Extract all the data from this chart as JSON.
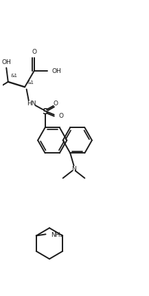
{
  "bg_color": "#ffffff",
  "line_color": "#1a1a1a",
  "line_width": 1.4,
  "font_size": 6.5,
  "fig_w": 2.17,
  "fig_h": 4.31,
  "dpi": 100,
  "xlim": [
    0,
    10
  ],
  "ylim": [
    0,
    20
  ]
}
